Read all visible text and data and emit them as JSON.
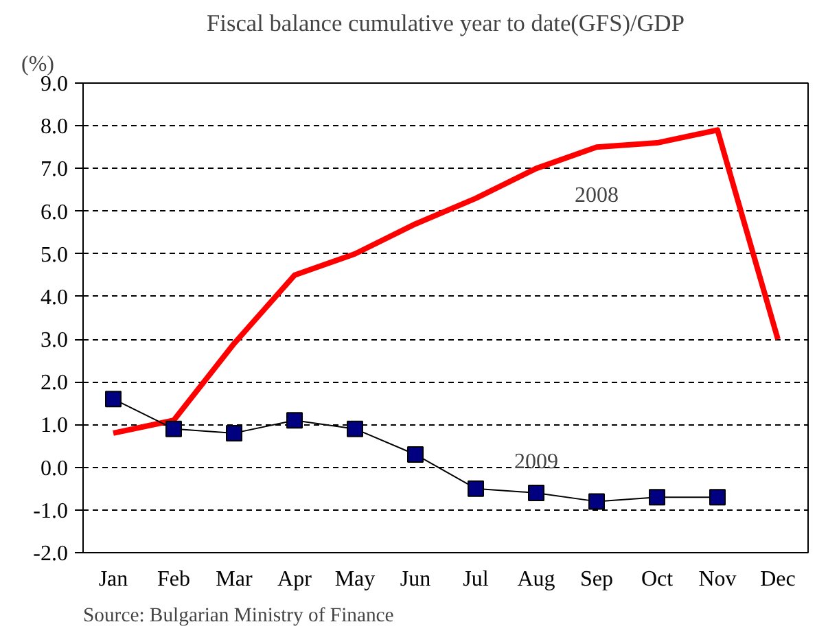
{
  "chart_data": {
    "type": "line",
    "title": "Fiscal balance cumulative year to date(GFS)/GDP",
    "ylabel": "(%)",
    "categories": [
      "Jan",
      "Feb",
      "Mar",
      "Apr",
      "May",
      "Jun",
      "Jul",
      "Aug",
      "Sep",
      "Oct",
      "Nov",
      "Dec"
    ],
    "series": [
      {
        "name": "2008",
        "color": "#ff0000",
        "marker": "none",
        "values": [
          0.8,
          1.1,
          2.9,
          4.5,
          5.0,
          5.7,
          6.3,
          7.0,
          7.5,
          7.6,
          7.9,
          3.0
        ]
      },
      {
        "name": "2009",
        "color": "#000000",
        "marker": "square",
        "values": [
          1.6,
          0.9,
          0.8,
          1.1,
          0.9,
          0.3,
          -0.5,
          -0.6,
          -0.8,
          -0.7,
          -0.7,
          null
        ]
      }
    ],
    "ylim": [
      -2.0,
      9.0
    ],
    "yticks": [
      {
        "value": -2,
        "label": "-2.0"
      },
      {
        "value": -1,
        "label": "-1.0"
      },
      {
        "value": 0,
        "label": "0.0"
      },
      {
        "value": 1,
        "label": "1.0"
      },
      {
        "value": 2,
        "label": "2.0"
      },
      {
        "value": 3,
        "label": "3.0"
      },
      {
        "value": 4,
        "label": "4.0"
      },
      {
        "value": 5,
        "label": "5.0"
      },
      {
        "value": 6,
        "label": "6.0"
      },
      {
        "value": 7,
        "label": "7.0"
      },
      {
        "value": 8,
        "label": "8.0"
      },
      {
        "value": 9,
        "label": "9.0"
      }
    ],
    "grid": "y",
    "annotations": [
      "Source: Bulgarian Ministry of Finance"
    ]
  }
}
